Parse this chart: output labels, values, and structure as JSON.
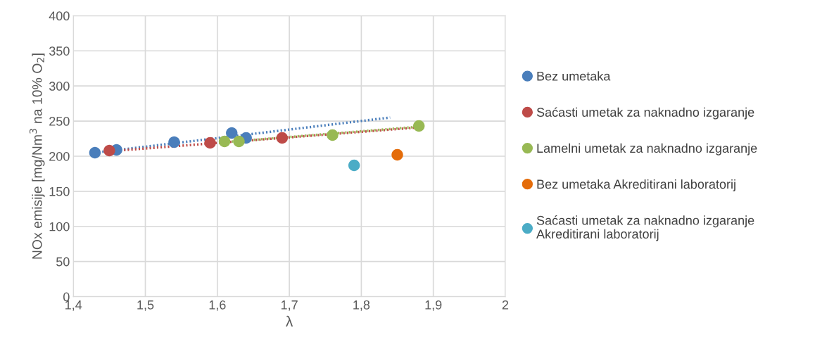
{
  "chart_data": {
    "type": "scatter",
    "xlabel": "λ",
    "ylabel": "NOx emisije [mg/Nm$^{3}$ na 10% O$_{2}$]",
    "series": [
      {
        "name": "Bez umetaka",
        "color": "#4a7ebb",
        "x": [
          1.43,
          1.46,
          1.54,
          1.62,
          1.64
        ],
        "values": [
          205,
          209,
          220,
          233,
          226
        ]
      },
      {
        "name": "Saćasti umetak za naknadno izgaranje",
        "color": "#be4b48",
        "x": [
          1.45,
          1.59,
          1.69
        ],
        "values": [
          208,
          219,
          226
        ]
      },
      {
        "name": "Lamelni umetak za naknadno izgaranje",
        "color": "#98b954",
        "x": [
          1.61,
          1.63,
          1.76,
          1.88
        ],
        "values": [
          221,
          221,
          230,
          243
        ]
      },
      {
        "name": "Bez umetaka Akreditirani laboratorij",
        "color": "#e46c0a",
        "x": [
          1.85
        ],
        "values": [
          202
        ]
      },
      {
        "name": "Saćasti umetak za naknadno izgaranje Akreditirani laboratorij",
        "color": "#4bacc6",
        "x": [
          1.79
        ],
        "values": [
          187
        ]
      },
      {
        "type": "line",
        "line_style": "dotted",
        "marker": "none",
        "color": "#4a7ebb",
        "x": [
          1.43,
          1.84
        ],
        "values": [
          205,
          255
        ]
      },
      {
        "type": "line",
        "line_style": "dotted",
        "marker": "none",
        "color": "#be4b48",
        "x": [
          1.45,
          1.88
        ],
        "values": [
          207,
          241
        ]
      },
      {
        "type": "line",
        "line_style": "dotted",
        "marker": "none",
        "color": "#98b954",
        "x": [
          1.61,
          1.88
        ],
        "values": [
          220,
          242
        ]
      }
    ],
    "xlim": [
      1.4,
      2.0
    ],
    "xticks": [
      {
        "value": 1.4,
        "label": "1,4"
      },
      {
        "value": 1.5,
        "label": "1,5"
      },
      {
        "value": 1.6,
        "label": "1,6"
      },
      {
        "value": 1.7,
        "label": "1,7"
      },
      {
        "value": 1.8,
        "label": "1,8"
      },
      {
        "value": 1.9,
        "label": "1,9"
      },
      {
        "value": 2.0,
        "label": "2"
      }
    ],
    "ylim": [
      0,
      400
    ],
    "yticks": [
      0,
      50,
      100,
      150,
      200,
      250,
      300,
      350,
      400
    ],
    "grid": true,
    "legend": "right",
    "marker": "circle"
  }
}
